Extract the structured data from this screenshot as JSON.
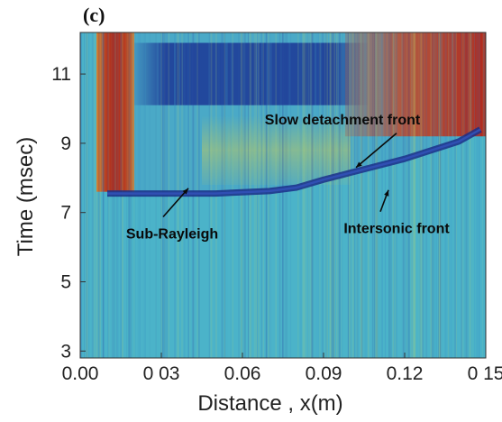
{
  "panel_label": "(c)",
  "chart_data": {
    "type": "heatmap",
    "title": "",
    "xlabel": "Distance , x(m)",
    "ylabel": "Time (msec)",
    "xlim": [
      0.0,
      0.15
    ],
    "ylim": [
      2.8,
      12.2
    ],
    "x_ticks": [
      {
        "value": 0.0,
        "label": "0.00"
      },
      {
        "value": 0.03,
        "label": "0 03"
      },
      {
        "value": 0.06,
        "label": "0.06"
      },
      {
        "value": 0.09,
        "label": "0.09"
      },
      {
        "value": 0.12,
        "label": "0.12"
      },
      {
        "value": 0.15,
        "label": "0 15"
      }
    ],
    "y_ticks": [
      {
        "value": 3,
        "label": "3"
      },
      {
        "value": 5,
        "label": "5"
      },
      {
        "value": 7,
        "label": "7"
      },
      {
        "value": 9,
        "label": "9"
      },
      {
        "value": 11,
        "label": "11"
      }
    ],
    "grid": false,
    "colormap": [
      "#2c3f9a",
      "#2f7fc4",
      "#4bb3c9",
      "#b9d873",
      "#e6c23a",
      "#d9702a",
      "#a8271e"
    ],
    "rupture_front": [
      {
        "x": 0.01,
        "t": 7.55
      },
      {
        "x": 0.05,
        "t": 7.55
      },
      {
        "x": 0.07,
        "t": 7.62
      },
      {
        "x": 0.08,
        "t": 7.72
      },
      {
        "x": 0.09,
        "t": 7.95
      },
      {
        "x": 0.1,
        "t": 8.15
      },
      {
        "x": 0.11,
        "t": 8.35
      },
      {
        "x": 0.12,
        "t": 8.55
      },
      {
        "x": 0.13,
        "t": 8.8
      },
      {
        "x": 0.14,
        "t": 9.05
      },
      {
        "x": 0.148,
        "t": 9.4
      }
    ],
    "annotations": [
      {
        "text": "Slow detachment front",
        "x": 0.097,
        "t": 9.55,
        "arrow_x": 0.102,
        "arrow_t": 8.3
      },
      {
        "text": "Sub-Rayleigh",
        "x": 0.034,
        "t": 6.25,
        "arrow_x": 0.04,
        "arrow_t": 7.7
      },
      {
        "text": "Intersonic front",
        "x": 0.117,
        "t": 6.4,
        "arrow_x": 0.114,
        "arrow_t": 7.65
      }
    ]
  }
}
